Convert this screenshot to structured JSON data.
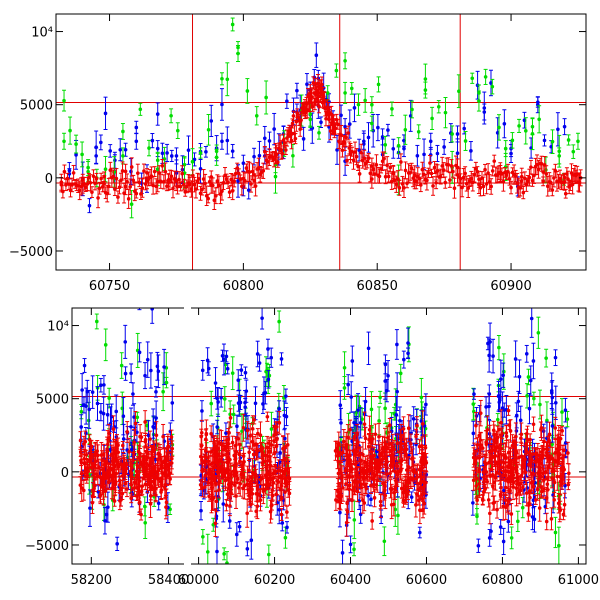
{
  "chart_data": [
    {
      "type": "scatter",
      "title": "",
      "xlabel": "",
      "ylabel": "",
      "xlim": [
        60730,
        60928
      ],
      "ylim": [
        -6300,
        11200
      ],
      "x_ticks": [
        60750,
        60800,
        60850,
        60900
      ],
      "x_tick_labels": [
        "60750",
        "60800",
        "60850",
        "60900"
      ],
      "y_ticks": [
        -5000,
        0,
        5000,
        10000
      ],
      "y_tick_labels": [
        "−5000",
        "0",
        "5000",
        "10⁴"
      ],
      "hlines": [
        5150,
        -350
      ],
      "vlines": [
        60781,
        60836,
        60881
      ],
      "series": [
        {
          "name": "blue",
          "color": "#0000ee",
          "x": [
            60735,
            60745,
            60752,
            60760,
            60768,
            60775,
            60784,
            60792,
            60800,
            60808,
            60815,
            60820,
            60825,
            60828,
            60832,
            60838,
            60845,
            60852,
            60860,
            60870,
            60880,
            60890,
            60900,
            60910,
            60920
          ],
          "y": [
            500,
            1500,
            1200,
            2500,
            2000,
            1500,
            1800,
            2500,
            1000,
            1500,
            3000,
            4500,
            6000,
            6800,
            5200,
            3500,
            2500,
            2800,
            2000,
            2500,
            3000,
            4500,
            2000,
            5000,
            3500
          ]
        },
        {
          "name": "green",
          "color": "#00dd00",
          "x": [
            60733,
            60742,
            60755,
            60768,
            60778,
            60790,
            60798,
            60812,
            60825,
            60838,
            60848,
            60858,
            60868,
            60878,
            60888,
            60898,
            60908,
            60918,
            60925
          ],
          "y": [
            2500,
            700,
            1500,
            1200,
            900,
            1400,
            8500,
            900,
            4000,
            8000,
            5000,
            2200,
            6000,
            3000,
            5800,
            2000,
            3500,
            1500,
            2500
          ]
        },
        {
          "name": "red",
          "color": "#ee0000",
          "x": [
            60732,
            60740,
            60748,
            60756,
            60764,
            60772,
            60780,
            60788,
            60796,
            60804,
            60812,
            60818,
            60823,
            60827,
            60830,
            60834,
            60840,
            60848,
            60856,
            60864,
            60872,
            60880,
            60888,
            60896,
            60904,
            60912,
            60920,
            60926
          ],
          "y": [
            -300,
            -500,
            -400,
            -600,
            -200,
            -300,
            -400,
            -500,
            -300,
            200,
            1500,
            3000,
            4800,
            5800,
            5300,
            3500,
            1800,
            800,
            300,
            -200,
            400,
            200,
            -100,
            300,
            -200,
            400,
            -300,
            0
          ]
        }
      ]
    },
    {
      "type": "scatter",
      "title": "",
      "xlabel": "",
      "ylabel": "",
      "ylim": [
        -6300,
        11200
      ],
      "segments": [
        {
          "xlim": [
            58150,
            58440
          ],
          "x_ticks": [
            58200,
            58400
          ],
          "x_tick_labels": [
            "58200",
            "58400"
          ]
        },
        {
          "xlim": [
            59980,
            61020
          ],
          "x_ticks": [
            60000,
            60200,
            60400,
            60600,
            60800,
            61000
          ],
          "x_tick_labels": [
            "60000",
            "60200",
            "60400",
            "60600",
            "60800",
            "61000"
          ]
        }
      ],
      "y_ticks": [
        -5000,
        0,
        5000,
        10000
      ],
      "y_tick_labels": [
        "−5000",
        "0",
        "5000",
        "10⁴"
      ],
      "hlines": [
        5150,
        -350
      ],
      "clusters": [
        {
          "segment": 0,
          "x_range": [
            58170,
            58410
          ],
          "red_center": 200,
          "red_spread": 2200,
          "outer_spread": 6000
        },
        {
          "segment": 1,
          "x_range": [
            60005,
            60240
          ],
          "red_center": 300,
          "red_spread": 2500,
          "outer_spread": 6500
        },
        {
          "segment": 1,
          "x_range": [
            60360,
            60600
          ],
          "red_center": 200,
          "red_spread": 2300,
          "outer_spread": 6000
        },
        {
          "segment": 1,
          "x_range": [
            60720,
            60975
          ],
          "red_center": 500,
          "red_spread": 2600,
          "outer_spread": 6500
        }
      ],
      "series": [
        {
          "name": "blue",
          "color": "#0000ee"
        },
        {
          "name": "green",
          "color": "#00dd00"
        },
        {
          "name": "red",
          "color": "#ee0000"
        }
      ]
    }
  ]
}
